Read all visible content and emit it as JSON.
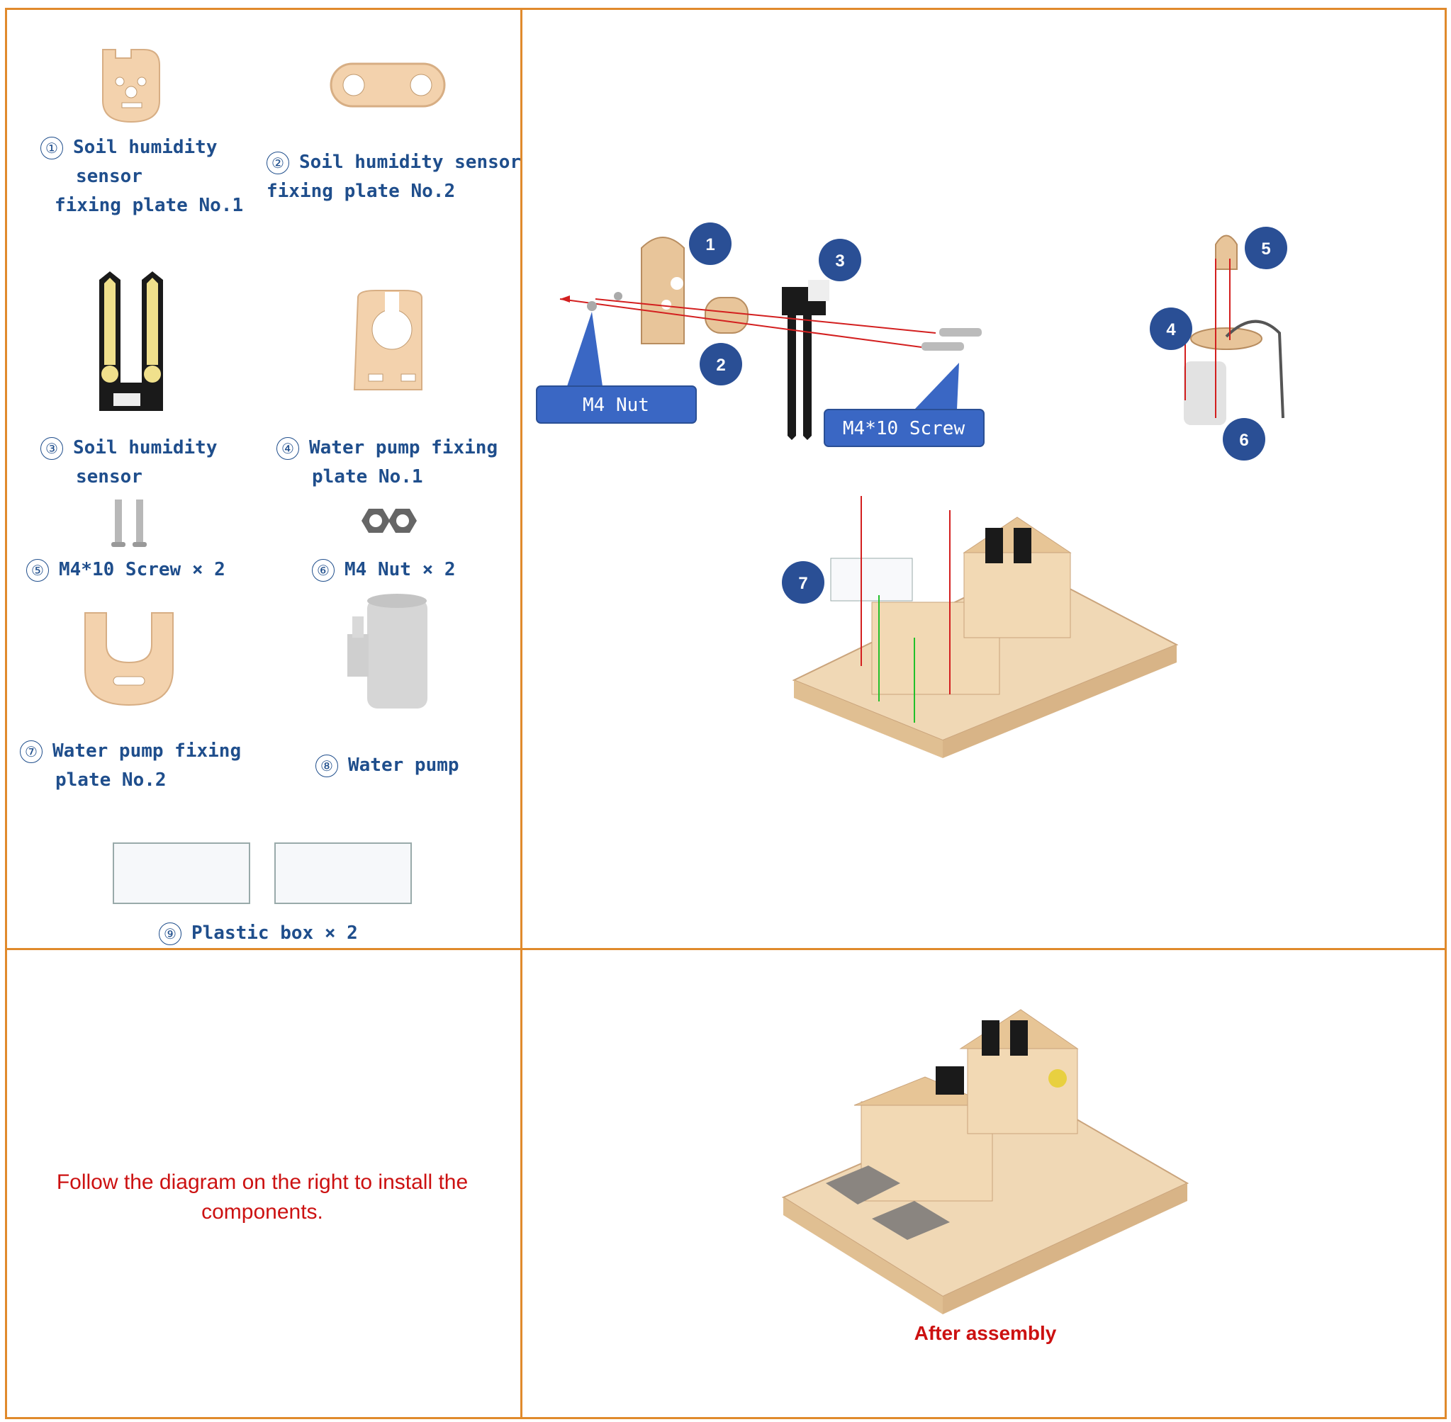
{
  "parts": [
    {
      "num": "①",
      "lines": [
        "Soil humidity",
        "sensor",
        "fixing plate No.1"
      ]
    },
    {
      "num": "②",
      "lines": [
        "Soil humidity sensor",
        "fixing plate No.2"
      ]
    },
    {
      "num": "③",
      "lines": [
        "Soil humidity",
        "sensor"
      ]
    },
    {
      "num": "④",
      "lines": [
        "Water pump fixing",
        "plate No.1"
      ]
    },
    {
      "num": "⑤",
      "lines": [
        "M4*10 Screw × 2"
      ]
    },
    {
      "num": "⑥",
      "lines": [
        "M4 Nut × 2"
      ]
    },
    {
      "num": "⑦",
      "lines": [
        "Water pump fixing",
        "plate No.2"
      ]
    },
    {
      "num": "⑧",
      "lines": [
        "Water pump"
      ]
    },
    {
      "num": "⑨",
      "lines": [
        "Plastic box × 2"
      ]
    }
  ],
  "callouts": {
    "nut": "M4 Nut",
    "screw": "M4*10 Screw"
  },
  "badges": [
    "1",
    "2",
    "3",
    "4",
    "5",
    "6",
    "7"
  ],
  "instruction": "Follow the diagram on the right to install the components.",
  "after_label": "After assembly",
  "colors": {
    "border": "#e08a2c",
    "label": "#1f4e8c",
    "badge": "#2a4f95",
    "callout": "#3a67c4",
    "instruction": "#cc1111",
    "wood": "#f3d2ad",
    "arrow_red": "#d31f1f",
    "arrow_green": "#22c02a"
  }
}
